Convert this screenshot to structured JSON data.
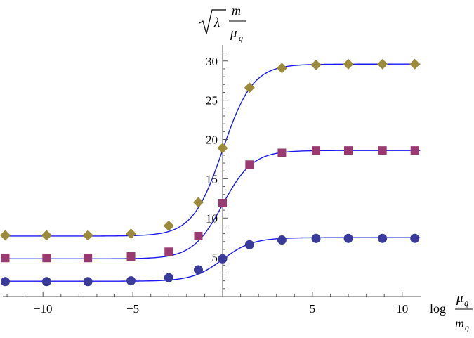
{
  "chart_data": {
    "type": "scatter",
    "xlabel": {
      "prefix": "log",
      "numerator": "μ",
      "numerator_sub": "q",
      "denominator": "m",
      "denominator_sub": "q"
    },
    "ylabel": {
      "root": "λ",
      "numerator": "m",
      "denominator": "μ",
      "denominator_sub": "q"
    },
    "xlim": [
      -12.3,
      11.0
    ],
    "ylim": [
      0,
      31.5
    ],
    "x_ticks": [
      -10,
      -5,
      5,
      10
    ],
    "x_tick_labels": [
      "−10",
      "−5",
      "5",
      "10"
    ],
    "y_ticks": [
      5,
      10,
      15,
      20,
      25,
      30
    ],
    "y_tick_labels": [
      "5",
      "10",
      "15",
      "20",
      "25",
      "30"
    ],
    "grid": false,
    "legend": "none",
    "curve_color": "#1a1aee",
    "series": [
      {
        "marker": "circle",
        "color": "#3a3a9a",
        "x": [
          -12.1,
          -9.8,
          -7.5,
          -5.1,
          -3.0,
          -1.35,
          0.0,
          1.5,
          3.3,
          5.2,
          7.0,
          8.9,
          10.7
        ],
        "y": [
          1.9,
          1.9,
          1.9,
          2.0,
          2.4,
          3.4,
          4.8,
          6.6,
          7.2,
          7.4,
          7.4,
          7.4,
          7.4
        ],
        "curve": {
          "low": 1.95,
          "high": 7.5,
          "center": 0.0,
          "rate": 1.2
        }
      },
      {
        "marker": "square",
        "color": "#9a3a70",
        "x": [
          -12.1,
          -9.8,
          -7.5,
          -5.1,
          -3.0,
          -1.35,
          0.0,
          1.5,
          3.3,
          5.2,
          7.0,
          8.9,
          10.7
        ],
        "y": [
          4.9,
          4.9,
          4.9,
          5.1,
          5.7,
          7.7,
          11.9,
          16.8,
          18.3,
          18.6,
          18.6,
          18.6,
          18.6
        ],
        "curve": {
          "low": 4.8,
          "high": 18.6,
          "center": 0.0,
          "rate": 1.2
        }
      },
      {
        "marker": "diamond",
        "color": "#9a8a3a",
        "x": [
          -12.1,
          -9.8,
          -7.5,
          -5.1,
          -3.0,
          -1.35,
          0.0,
          1.5,
          3.3,
          5.2,
          7.0,
          8.9,
          10.7
        ],
        "y": [
          7.8,
          7.8,
          7.8,
          8.0,
          9.0,
          12.0,
          18.9,
          26.6,
          29.1,
          29.5,
          29.6,
          29.6,
          29.6
        ],
        "curve": {
          "low": 7.7,
          "high": 29.6,
          "center": 0.0,
          "rate": 1.2
        }
      }
    ]
  }
}
